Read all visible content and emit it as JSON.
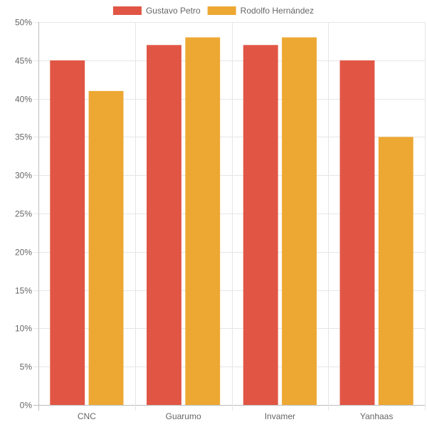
{
  "chart_data": {
    "type": "bar",
    "categories": [
      "CNC",
      "Guarumo",
      "Invamer",
      "Yanhaas"
    ],
    "series": [
      {
        "name": "Gustavo Petro",
        "color": "#e15545",
        "values": [
          45,
          47,
          47,
          45
        ]
      },
      {
        "name": "Rodolfo Hernández",
        "color": "#eda833",
        "values": [
          41,
          48,
          48,
          35
        ]
      }
    ],
    "y_ticks": [
      "0%",
      "5%",
      "10%",
      "15%",
      "20%",
      "25%",
      "30%",
      "35%",
      "40%",
      "45%",
      "50%"
    ],
    "ylim": [
      0,
      50
    ],
    "y_unit": "%",
    "grid": true,
    "legend_position": "top-center"
  }
}
